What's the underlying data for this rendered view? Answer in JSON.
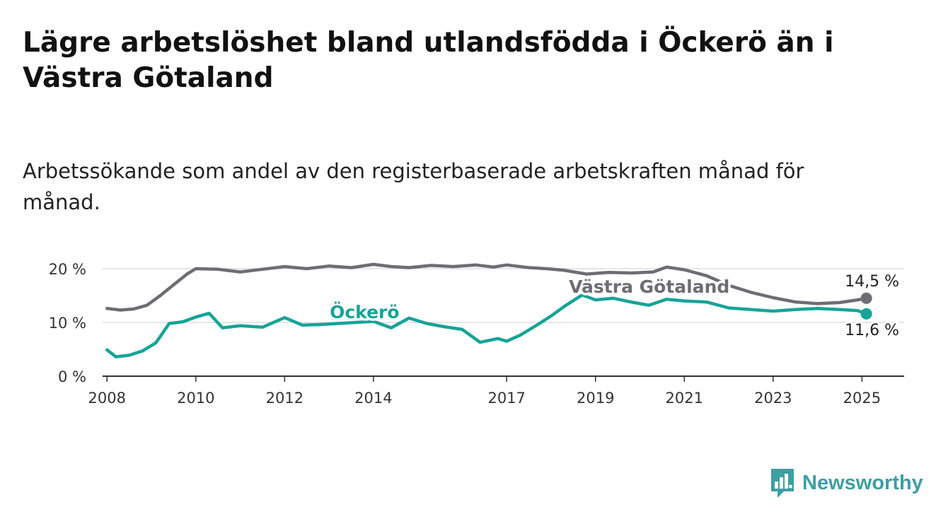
{
  "title": "Lägre arbetslöshet bland utlandsfödda i Öckerö än i Västra Götaland",
  "subtitle": "Arbetssökande som andel av den registerbaserade arbetskraften månad för månad.",
  "brand": {
    "name": "Newsworthy",
    "icon": "newsworthy-logo-icon",
    "color": "#3d9ea3"
  },
  "chart_data": {
    "type": "line",
    "title": "Lägre arbetslöshet bland utlandsfödda i Öckerö än i Västra Götaland",
    "subtitle": "Arbetssökande som andel av den registerbaserade arbetskraften månad för månad.",
    "xlabel": "",
    "ylabel": "",
    "xlim": [
      2007.9,
      2025.95
    ],
    "ylim": [
      0,
      20
    ],
    "y_ticks": [
      0,
      10,
      20
    ],
    "y_tick_labels": [
      "0 %",
      "10 %",
      "20 %"
    ],
    "x_ticks": [
      2008,
      2010,
      2012,
      2014,
      2017,
      2019,
      2021,
      2023,
      2025
    ],
    "x_tick_labels": [
      "2008",
      "2010",
      "2012",
      "2014",
      "2017",
      "2019",
      "2021",
      "2023",
      "2025"
    ],
    "grid": true,
    "legend": "inline labels",
    "series": [
      {
        "name": "Västra Götaland",
        "color": "#6e6d73",
        "end_label": "14,5 %",
        "points": [
          [
            2008.0,
            12.6
          ],
          [
            2008.3,
            12.3
          ],
          [
            2008.6,
            12.5
          ],
          [
            2008.9,
            13.2
          ],
          [
            2009.2,
            15.0
          ],
          [
            2009.5,
            17.0
          ],
          [
            2009.8,
            19.0
          ],
          [
            2010.0,
            20.0
          ],
          [
            2010.5,
            19.9
          ],
          [
            2011.0,
            19.4
          ],
          [
            2011.5,
            19.9
          ],
          [
            2012.0,
            20.4
          ],
          [
            2012.5,
            20.0
          ],
          [
            2013.0,
            20.5
          ],
          [
            2013.5,
            20.2
          ],
          [
            2014.0,
            20.8
          ],
          [
            2014.4,
            20.4
          ],
          [
            2014.8,
            20.2
          ],
          [
            2015.3,
            20.6
          ],
          [
            2015.8,
            20.4
          ],
          [
            2016.3,
            20.7
          ],
          [
            2016.7,
            20.3
          ],
          [
            2017.0,
            20.7
          ],
          [
            2017.5,
            20.2
          ],
          [
            2017.9,
            20.0
          ],
          [
            2018.3,
            19.7
          ],
          [
            2018.8,
            19.0
          ],
          [
            2019.3,
            19.3
          ],
          [
            2019.8,
            19.2
          ],
          [
            2020.3,
            19.4
          ],
          [
            2020.6,
            20.3
          ],
          [
            2021.0,
            19.8
          ],
          [
            2021.5,
            18.7
          ],
          [
            2022.0,
            16.9
          ],
          [
            2022.5,
            15.6
          ],
          [
            2023.0,
            14.6
          ],
          [
            2023.5,
            13.8
          ],
          [
            2024.0,
            13.5
          ],
          [
            2024.5,
            13.7
          ],
          [
            2024.9,
            14.2
          ],
          [
            2025.1,
            14.5
          ]
        ]
      },
      {
        "name": "Öckerö",
        "color": "#17a398",
        "end_label": "11,6 %",
        "points": [
          [
            2008.0,
            4.9
          ],
          [
            2008.2,
            3.6
          ],
          [
            2008.5,
            3.9
          ],
          [
            2008.8,
            4.7
          ],
          [
            2009.1,
            6.2
          ],
          [
            2009.4,
            9.8
          ],
          [
            2009.7,
            10.1
          ],
          [
            2010.0,
            11.0
          ],
          [
            2010.3,
            11.7
          ],
          [
            2010.6,
            9.0
          ],
          [
            2011.0,
            9.4
          ],
          [
            2011.5,
            9.1
          ],
          [
            2012.0,
            10.9
          ],
          [
            2012.4,
            9.5
          ],
          [
            2012.8,
            9.6
          ],
          [
            2013.2,
            9.8
          ],
          [
            2013.6,
            10.0
          ],
          [
            2014.0,
            10.2
          ],
          [
            2014.4,
            9.0
          ],
          [
            2014.8,
            10.8
          ],
          [
            2015.2,
            9.8
          ],
          [
            2015.6,
            9.2
          ],
          [
            2016.0,
            8.7
          ],
          [
            2016.4,
            6.3
          ],
          [
            2016.8,
            7.0
          ],
          [
            2017.0,
            6.5
          ],
          [
            2017.3,
            7.6
          ],
          [
            2017.7,
            9.6
          ],
          [
            2018.0,
            11.2
          ],
          [
            2018.3,
            13.0
          ],
          [
            2018.7,
            15.1
          ],
          [
            2019.0,
            14.2
          ],
          [
            2019.4,
            14.5
          ],
          [
            2019.8,
            13.8
          ],
          [
            2020.2,
            13.2
          ],
          [
            2020.6,
            14.3
          ],
          [
            2021.0,
            14.0
          ],
          [
            2021.5,
            13.8
          ],
          [
            2022.0,
            12.7
          ],
          [
            2022.5,
            12.4
          ],
          [
            2023.0,
            12.1
          ],
          [
            2023.5,
            12.4
          ],
          [
            2024.0,
            12.6
          ],
          [
            2024.5,
            12.4
          ],
          [
            2024.9,
            12.2
          ],
          [
            2025.1,
            11.6
          ]
        ]
      }
    ]
  }
}
